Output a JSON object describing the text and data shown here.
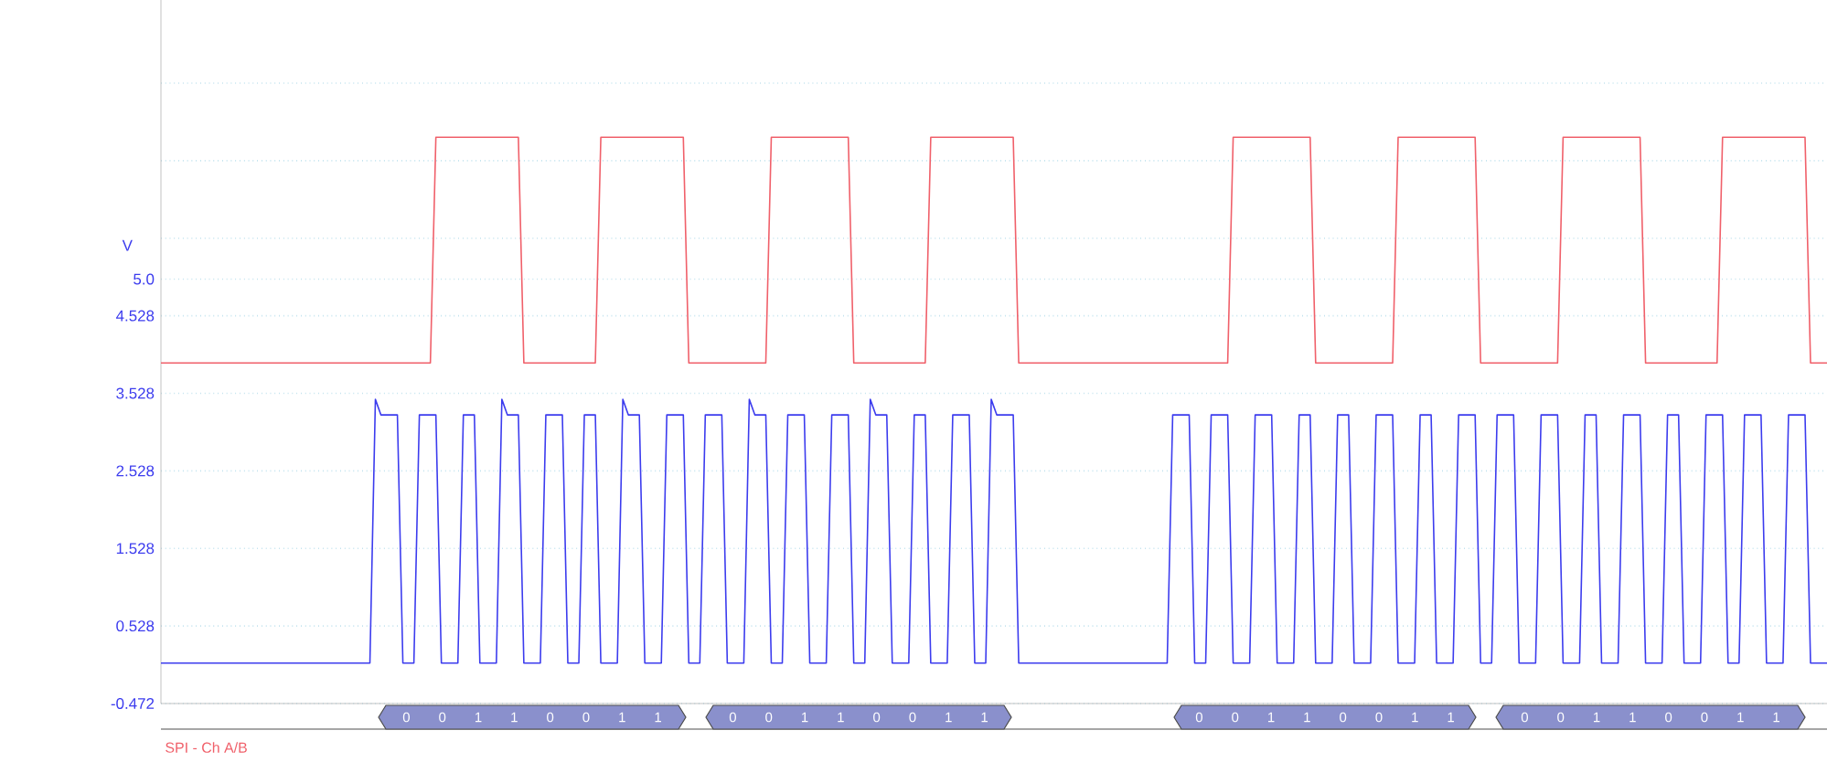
{
  "chart_data": {
    "type": "line",
    "ylabel": "V",
    "ylim": [
      -0.472,
      8.6
    ],
    "yticks": [
      -0.472,
      0.528,
      1.528,
      2.528,
      3.528,
      4.528,
      {
        "value": 5.0,
        "label": "5.0"
      },
      {
        "value": 5.528,
        "label": null
      },
      {
        "value": 6.528,
        "label": null
      },
      {
        "value": 7.528,
        "label": null
      }
    ],
    "grid": "y",
    "annotations": [
      "0 0 1 1 0 0 1 1",
      "0 0 1 1 0 0 1 1",
      "0 0 1 1 0 0 1 1",
      "0 0 1 1 0 0 1 1",
      "SPI - Ch A/B"
    ],
    "categories": [
      null,
      null,
      null,
      null,
      null,
      null,
      null,
      null,
      null,
      null,
      null,
      null,
      null,
      null,
      null,
      null,
      null,
      null,
      null,
      null,
      null,
      null,
      null,
      null,
      null,
      null,
      null,
      null,
      null,
      null,
      null,
      null,
      null,
      null,
      null,
      null,
      null,
      null,
      null,
      null,
      null,
      null,
      null,
      null,
      null,
      null,
      null,
      null,
      null,
      null,
      null,
      null,
      null,
      null,
      null,
      null,
      null,
      null,
      null,
      null,
      null,
      null,
      null,
      null,
      null,
      null,
      null,
      null,
      null,
      null,
      null,
      null,
      null,
      null,
      null,
      null,
      null,
      null,
      null,
      null,
      null,
      null,
      null,
      null,
      null,
      null,
      null,
      null,
      null,
      null,
      null,
      null,
      null,
      null,
      null,
      null,
      null,
      null,
      null,
      null,
      null,
      null,
      null,
      null,
      null,
      null,
      null,
      null,
      null,
      null,
      null,
      null,
      null,
      null,
      null,
      null,
      null,
      null,
      null,
      null,
      null,
      null,
      null,
      null,
      null,
      null,
      null,
      null,
      null,
      null,
      null,
      null,
      null,
      null,
      null,
      null,
      null,
      null,
      null,
      null,
      null,
      null,
      null,
      null,
      null,
      null,
      null,
      null,
      null,
      null,
      null,
      null,
      null,
      null,
      null,
      null,
      null,
      null,
      null,
      null,
      null,
      null,
      null,
      null,
      null,
      null,
      null,
      null,
      null,
      null,
      null,
      null,
      null,
      null,
      null,
      null,
      null,
      null,
      null,
      null,
      null,
      null,
      null,
      null,
      null,
      null,
      null,
      null,
      null,
      null,
      null,
      null,
      null,
      null,
      null,
      null,
      null,
      null,
      null,
      null,
      null,
      null,
      null,
      null,
      null,
      null,
      null,
      null,
      null,
      null,
      null,
      null,
      null,
      null,
      null,
      null,
      null,
      null,
      null,
      null,
      null,
      null,
      null,
      null,
      null,
      null,
      null,
      null,
      null,
      null,
      null,
      null,
      null,
      null,
      null,
      null,
      null,
      null,
      null,
      null,
      null,
      null,
      null,
      null,
      null,
      null,
      null,
      null,
      null,
      null,
      null,
      null,
      null,
      null,
      null,
      null,
      null,
      null,
      null,
      null,
      null,
      null,
      null,
      null,
      null,
      null,
      null,
      null,
      null,
      null,
      null,
      null,
      null,
      null,
      null,
      null,
      null,
      null,
      null,
      null,
      null,
      null,
      null,
      null,
      null,
      null,
      null,
      null,
      null,
      null,
      null,
      null,
      null,
      null,
      null,
      null,
      null,
      null,
      null,
      null,
      null,
      null,
      null,
      null
    ],
    "series": [
      {
        "color": "#f0606a",
        "values": [
          3.92,
          3.92,
          3.92,
          3.92,
          3.92,
          3.92,
          3.92,
          3.92,
          3.92,
          3.92,
          3.92,
          3.92,
          3.92,
          3.92,
          3.92,
          3.92,
          3.92,
          3.92,
          3.92,
          3.92,
          3.92,
          3.92,
          3.92,
          3.92,
          3.92,
          3.92,
          3.92,
          3.92,
          3.92,
          3.92,
          3.92,
          3.92,
          3.92,
          3.92,
          3.92,
          3.92,
          3.92,
          3.92,
          3.92,
          3.92,
          3.92,
          3.92,
          3.92,
          3.92,
          3.92,
          3.92,
          3.92,
          3.92,
          3.92,
          3.92,
          6.83,
          6.83,
          6.83,
          6.83,
          6.83,
          6.83,
          6.83,
          6.83,
          6.83,
          6.83,
          6.83,
          6.83,
          6.83,
          6.83,
          6.83,
          6.83,
          3.92,
          3.92,
          3.92,
          3.92,
          3.92,
          3.92,
          3.92,
          3.92,
          3.92,
          3.92,
          3.92,
          3.92,
          3.92,
          3.92,
          6.83,
          6.83,
          6.83,
          6.83,
          6.83,
          6.83,
          6.83,
          6.83,
          6.83,
          6.83,
          6.83,
          6.83,
          6.83,
          6.83,
          6.83,
          6.83,
          3.92,
          3.92,
          3.92,
          3.92,
          3.92,
          3.92,
          3.92,
          3.92,
          3.92,
          3.92,
          3.92,
          3.92,
          3.92,
          3.92,
          3.92,
          6.83,
          6.83,
          6.83,
          6.83,
          6.83,
          6.83,
          6.83,
          6.83,
          6.83,
          6.83,
          6.83,
          6.83,
          6.83,
          6.83,
          6.83,
          3.92,
          3.92,
          3.92,
          3.92,
          3.92,
          3.92,
          3.92,
          3.92,
          3.92,
          3.92,
          3.92,
          3.92,
          3.92,
          3.92,
          6.83,
          6.83,
          6.83,
          6.83,
          6.83,
          6.83,
          6.83,
          6.83,
          6.83,
          6.83,
          6.83,
          6.83,
          6.83,
          6.83,
          6.83,
          6.83,
          3.92,
          3.92,
          3.92,
          3.92,
          3.92,
          3.92,
          3.92,
          3.92,
          3.92,
          3.92,
          3.92,
          3.92,
          3.92,
          3.92,
          3.92,
          3.92,
          3.92,
          3.92,
          3.92,
          3.92,
          3.92,
          3.92,
          3.92,
          3.92,
          3.92,
          3.92,
          3.92,
          3.92,
          3.92,
          3.92,
          3.92,
          3.92,
          3.92,
          3.92,
          3.92,
          3.92,
          3.92,
          3.92,
          3.92,
          6.83,
          6.83,
          6.83,
          6.83,
          6.83,
          6.83,
          6.83,
          6.83,
          6.83,
          6.83,
          6.83,
          6.83,
          6.83,
          6.83,
          6.83,
          3.92,
          3.92,
          3.92,
          3.92,
          3.92,
          3.92,
          3.92,
          3.92,
          3.92,
          3.92,
          3.92,
          3.92,
          3.92,
          3.92,
          3.92,
          6.83,
          6.83,
          6.83,
          6.83,
          6.83,
          6.83,
          6.83,
          6.83,
          6.83,
          6.83,
          6.83,
          6.83,
          6.83,
          6.83,
          6.83,
          3.92,
          3.92,
          3.92,
          3.92,
          3.92,
          3.92,
          3.92,
          3.92,
          3.92,
          3.92,
          3.92,
          3.92,
          3.92,
          3.92,
          3.92,
          6.83,
          6.83,
          6.83,
          6.83,
          6.83,
          6.83,
          6.83,
          6.83,
          6.83,
          6.83,
          6.83,
          6.83,
          6.83,
          6.83,
          6.83,
          3.92,
          3.92,
          3.92,
          3.92,
          3.92,
          3.92,
          3.92,
          3.92,
          3.92,
          3.92,
          3.92,
          3.92,
          3.92,
          3.92,
          6.83,
          6.83,
          6.83,
          6.83,
          6.83,
          6.83,
          6.83,
          6.83,
          6.83,
          6.83,
          6.83,
          6.83,
          6.83,
          6.83,
          6.83,
          6.83,
          3.92,
          3.92,
          3.92,
          3.92
        ]
      },
      {
        "color": "#3c3cee",
        "values": [
          0.05,
          0.05,
          0.05,
          0.05,
          0.05,
          0.05,
          0.05,
          0.05,
          0.05,
          0.05,
          0.05,
          0.05,
          0.05,
          0.05,
          0.05,
          0.05,
          0.05,
          0.05,
          0.05,
          0.05,
          0.05,
          0.05,
          0.05,
          0.05,
          0.05,
          0.05,
          0.05,
          0.05,
          0.05,
          0.05,
          0.05,
          0.05,
          0.05,
          0.05,
          0.05,
          0.05,
          0.05,
          0.05,
          0.05,
          3.45,
          3.25,
          3.25,
          3.25,
          3.25,
          0.05,
          0.05,
          0.05,
          3.25,
          3.25,
          3.25,
          3.25,
          0.05,
          0.05,
          0.05,
          0.05,
          3.25,
          3.25,
          3.25,
          0.05,
          0.05,
          0.05,
          0.05,
          3.45,
          3.25,
          3.25,
          3.25,
          0.05,
          0.05,
          0.05,
          0.05,
          3.25,
          3.25,
          3.25,
          3.25,
          0.05,
          0.05,
          0.05,
          3.25,
          3.25,
          3.25,
          0.05,
          0.05,
          0.05,
          0.05,
          3.45,
          3.25,
          3.25,
          3.25,
          0.05,
          0.05,
          0.05,
          0.05,
          3.25,
          3.25,
          3.25,
          3.25,
          0.05,
          0.05,
          0.05,
          3.25,
          3.25,
          3.25,
          3.25,
          0.05,
          0.05,
          0.05,
          0.05,
          3.45,
          3.25,
          3.25,
          3.25,
          0.05,
          0.05,
          0.05,
          3.25,
          3.25,
          3.25,
          3.25,
          0.05,
          0.05,
          0.05,
          0.05,
          3.25,
          3.25,
          3.25,
          3.25,
          0.05,
          0.05,
          0.05,
          3.45,
          3.25,
          3.25,
          3.25,
          0.05,
          0.05,
          0.05,
          0.05,
          3.25,
          3.25,
          3.25,
          0.05,
          0.05,
          0.05,
          0.05,
          3.25,
          3.25,
          3.25,
          3.25,
          0.05,
          0.05,
          0.05,
          3.45,
          3.25,
          3.25,
          3.25,
          3.25,
          0.05,
          0.05,
          0.05,
          0.05,
          0.05,
          0.05,
          0.05,
          0.05,
          0.05,
          0.05,
          0.05,
          0.05,
          0.05,
          0.05,
          0.05,
          0.05,
          0.05,
          0.05,
          0.05,
          0.05,
          0.05,
          0.05,
          0.05,
          0.05,
          0.05,
          0.05,
          0.05,
          0.05,
          3.25,
          3.25,
          3.25,
          3.25,
          0.05,
          0.05,
          0.05,
          3.25,
          3.25,
          3.25,
          3.25,
          0.05,
          0.05,
          0.05,
          0.05,
          3.25,
          3.25,
          3.25,
          3.25,
          0.05,
          0.05,
          0.05,
          0.05,
          3.25,
          3.25,
          3.25,
          0.05,
          0.05,
          0.05,
          0.05,
          3.25,
          3.25,
          3.25,
          0.05,
          0.05,
          0.05,
          0.05,
          3.25,
          3.25,
          3.25,
          3.25,
          0.05,
          0.05,
          0.05,
          0.05,
          3.25,
          3.25,
          3.25,
          0.05,
          0.05,
          0.05,
          0.05,
          3.25,
          3.25,
          3.25,
          3.25,
          0.05,
          0.05,
          0.05,
          3.25,
          3.25,
          3.25,
          3.25,
          0.05,
          0.05,
          0.05,
          0.05,
          3.25,
          3.25,
          3.25,
          3.25,
          0.05,
          0.05,
          0.05,
          0.05,
          3.25,
          3.25,
          3.25,
          0.05,
          0.05,
          0.05,
          0.05,
          3.25,
          3.25,
          3.25,
          3.25,
          0.05,
          0.05,
          0.05,
          0.05,
          3.25,
          3.25,
          3.25,
          0.05,
          0.05,
          0.05,
          0.05,
          3.25,
          3.25,
          3.25,
          3.25,
          0.05,
          0.05,
          0.05,
          3.25,
          3.25,
          3.25,
          3.25,
          0.05,
          0.05,
          0.05,
          0.05,
          3.25,
          3.25,
          3.25,
          3.25,
          0.05,
          0.05,
          0.05,
          0.05
        ]
      }
    ]
  }
}
